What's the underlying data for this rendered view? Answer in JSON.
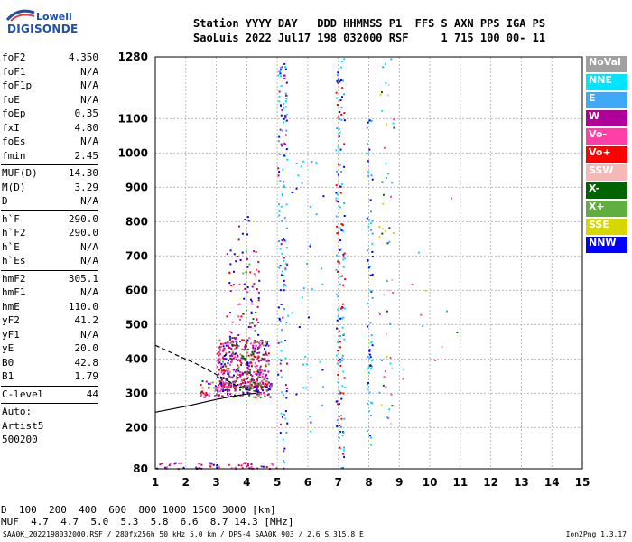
{
  "logo": {
    "line1": "Lowell",
    "line2": "DIGISONDE"
  },
  "header": {
    "line1": "Station YYYY DAY   DDD HHMMSS P1  FFS S AXN PPS IGA PS",
    "line2": "SaoLuis 2022 Jul17 198 032000 RSF     1 715 100 00- 11"
  },
  "params": [
    {
      "k": "foF2",
      "v": "4.350"
    },
    {
      "k": "foF1",
      "v": "N/A"
    },
    {
      "k": "foF1p",
      "v": "N/A"
    },
    {
      "k": "foE",
      "v": "N/A"
    },
    {
      "k": "foEp",
      "v": "0.35"
    },
    {
      "k": "fxI",
      "v": "4.80"
    },
    {
      "k": "foEs",
      "v": "N/A"
    },
    {
      "k": "fmin",
      "v": "2.45"
    },
    {
      "sep": true
    },
    {
      "k": "MUF(D)",
      "v": "14.30"
    },
    {
      "k": "M(D)",
      "v": "3.29"
    },
    {
      "k": "D",
      "v": "N/A"
    },
    {
      "sep": true
    },
    {
      "k": "h`F",
      "v": "290.0"
    },
    {
      "k": "h`F2",
      "v": "290.0"
    },
    {
      "k": "h`E",
      "v": "N/A"
    },
    {
      "k": "h`Es",
      "v": "N/A"
    },
    {
      "sep": true
    },
    {
      "k": "hmF2",
      "v": "305.1"
    },
    {
      "k": "hmF1",
      "v": "N/A"
    },
    {
      "k": "hmE",
      "v": "110.0"
    },
    {
      "k": "yF2",
      "v": "41.2"
    },
    {
      "k": "yF1",
      "v": "N/A"
    },
    {
      "k": "yE",
      "v": "20.0"
    },
    {
      "k": "B0",
      "v": "42.8"
    },
    {
      "k": "B1",
      "v": "1.79"
    },
    {
      "sep": true
    },
    {
      "k": "C-level",
      "v": "44"
    },
    {
      "sep": true
    },
    {
      "t": "Auto:"
    },
    {
      "t": "Artist5"
    },
    {
      "t": "500200"
    }
  ],
  "legend": [
    {
      "label": "NoVal",
      "color": "#a0a0a0"
    },
    {
      "label": "NNE",
      "color": "#00e5ff"
    },
    {
      "label": "E",
      "color": "#3fa9f5"
    },
    {
      "label": "W",
      "color": "#b0009a"
    },
    {
      "label": "Vo-",
      "color": "#ff3fa8"
    },
    {
      "label": "Vo+",
      "color": "#ff0000"
    },
    {
      "label": "SSW",
      "color": "#f5b8b8"
    },
    {
      "label": "X-",
      "color": "#006400"
    },
    {
      "label": "X+",
      "color": "#5fae3f"
    },
    {
      "label": "SSE",
      "color": "#d7d700"
    },
    {
      "label": "NNW",
      "color": "#0000ff"
    }
  ],
  "muf_table": {
    "d_label": "D",
    "d_values": [
      "100",
      "200",
      "400",
      "600",
      "800",
      "1000",
      "1500",
      "3000"
    ],
    "d_unit": "[km]",
    "muf_label": "MUF",
    "muf_values": [
      "4.7",
      "4.7",
      "5.0",
      "5.3",
      "5.8",
      "6.6",
      "8.7",
      "14.3"
    ],
    "muf_unit": "[MHz]"
  },
  "footer": {
    "left": "SAA0K_2022198032000.RSF / 280fx256h 50 kHz 5.0 km / DPS-4 SAA0K 903 / 2.6 S 315.8 E",
    "right": "Ion2Png 1.3.17"
  },
  "chart_data": {
    "type": "scatter",
    "title": "",
    "xlabel": "",
    "ylabel": "",
    "xlim": [
      1,
      15
    ],
    "ylim": [
      80,
      1280
    ],
    "xticks": [
      1,
      2,
      3,
      4,
      5,
      6,
      7,
      8,
      9,
      10,
      11,
      12,
      13,
      14,
      15
    ],
    "yticks": [
      80,
      200,
      300,
      400,
      500,
      600,
      700,
      800,
      900,
      1000,
      1100,
      1280
    ],
    "grid": true,
    "traces": [
      {
        "name": "",
        "style": "solid",
        "x": [
          1.0,
          2.0,
          3.0,
          3.6,
          4.0,
          4.3
        ],
        "y": [
          245,
          262,
          282,
          292,
          298,
          300
        ]
      },
      {
        "name": "",
        "style": "dashed",
        "x": [
          1.0,
          1.6,
          2.3,
          3.0,
          3.6,
          4.0,
          4.35
        ],
        "y": [
          440,
          415,
          388,
          355,
          325,
          310,
          305
        ]
      }
    ],
    "echo_regions": [
      {
        "desc": "F-layer trace",
        "x": [
          2.45,
          4.8
        ],
        "y": [
          290,
          480
        ]
      },
      {
        "desc": "Spread F",
        "x": [
          3.0,
          4.6
        ],
        "y": [
          300,
          800
        ]
      },
      {
        "desc": "Multiple reflection",
        "x": [
          5.0,
          5.3
        ],
        "y": [
          80,
          1280
        ]
      },
      {
        "desc": "Multiple reflection",
        "x": [
          6.9,
          7.2
        ],
        "y": [
          80,
          1280
        ]
      },
      {
        "desc": "Multiple reflection",
        "x": [
          7.9,
          8.1
        ],
        "y": [
          150,
          1100
        ]
      },
      {
        "desc": "Multiple reflection",
        "x": [
          8.3,
          8.8
        ],
        "y": [
          200,
          1280
        ]
      },
      {
        "desc": "E-region echoes",
        "x": [
          1.0,
          5.0
        ],
        "y": [
          80,
          100
        ]
      }
    ]
  }
}
